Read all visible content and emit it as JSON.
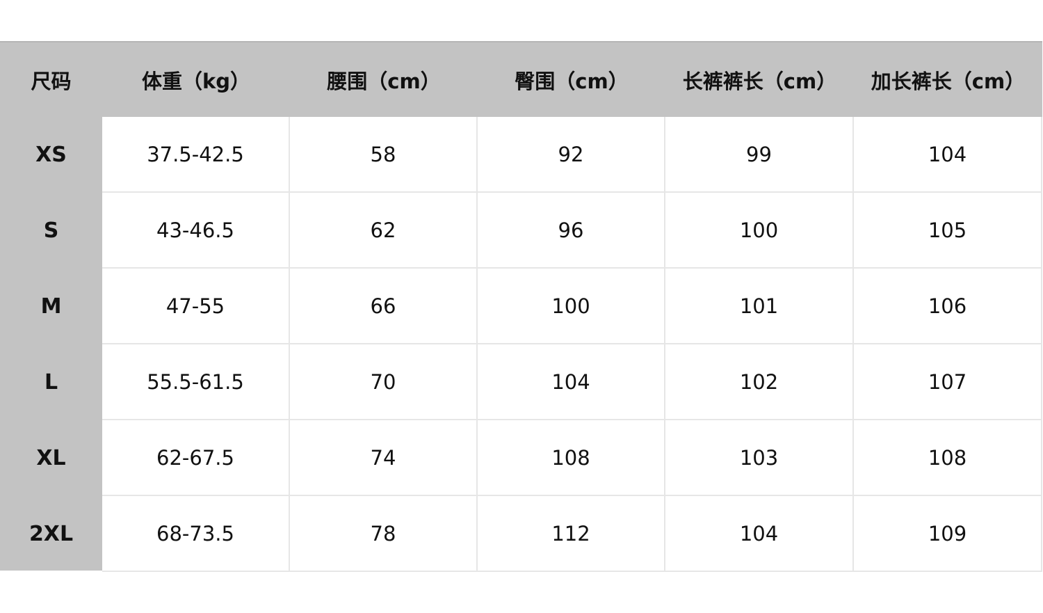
{
  "headers": [
    "尺码",
    "体重（kg）",
    "腰围（cm）",
    "臀围（cm）",
    "长裤裤长（cm）",
    "加长裤长（cm）"
  ],
  "rows": [
    [
      "XS",
      "37.5-42.5",
      "58",
      "92",
      "99",
      "104"
    ],
    [
      "S",
      "43-46.5",
      "62",
      "96",
      "100",
      "105"
    ],
    [
      "M",
      "47-55",
      "66",
      "100",
      "101",
      "106"
    ],
    [
      "L",
      "55.5-61.5",
      "70",
      "104",
      "102",
      "107"
    ],
    [
      "XL",
      "62-67.5",
      "74",
      "108",
      "103",
      "108"
    ],
    [
      "2XL",
      "68-73.5",
      "78",
      "112",
      "104",
      "109"
    ]
  ],
  "colors": {
    "header_bg": "#c3c3c3",
    "cell_bg": "#ffffff",
    "grid_line": "#e6e6e6"
  }
}
